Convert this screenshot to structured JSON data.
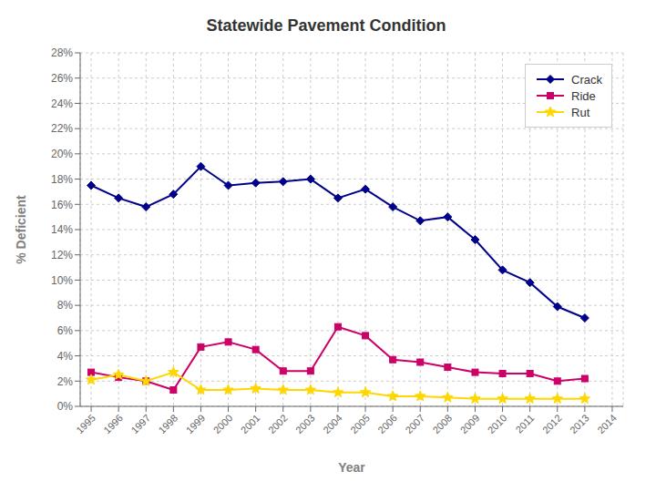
{
  "chart_data": {
    "type": "line",
    "title": "Statewide Pavement Condition",
    "xlabel": "Year",
    "ylabel": "% Deficient",
    "x": [
      1995,
      1996,
      1997,
      1998,
      1999,
      2000,
      2001,
      2002,
      2003,
      2004,
      2005,
      2006,
      2007,
      2008,
      2009,
      2010,
      2011,
      2012,
      2013,
      2014
    ],
    "series": [
      {
        "name": "Crack",
        "color": "#00008B",
        "marker": "diamond",
        "values": [
          17.5,
          16.5,
          15.8,
          16.8,
          19.0,
          17.5,
          17.7,
          17.8,
          18.0,
          16.5,
          17.2,
          15.8,
          14.7,
          15.0,
          13.2,
          10.8,
          9.8,
          7.9,
          7.0,
          null
        ]
      },
      {
        "name": "Ride",
        "color": "#CC0066",
        "marker": "square",
        "values": [
          2.7,
          2.3,
          2.0,
          1.3,
          4.7,
          5.1,
          4.5,
          2.8,
          2.8,
          6.3,
          5.6,
          3.7,
          3.5,
          3.1,
          2.7,
          2.6,
          2.6,
          2.0,
          2.2,
          null
        ]
      },
      {
        "name": "Rut",
        "color": "#FFD700",
        "marker": "star",
        "values": [
          2.1,
          2.5,
          2.0,
          2.7,
          1.3,
          1.3,
          1.4,
          1.3,
          1.3,
          1.1,
          1.1,
          0.8,
          0.8,
          0.7,
          0.6,
          0.6,
          0.6,
          0.6,
          0.6,
          null
        ]
      }
    ],
    "xlim": [
      1994.6,
      2014.4
    ],
    "xticks": [
      1995,
      1996,
      1997,
      1998,
      1999,
      2000,
      2001,
      2002,
      2003,
      2004,
      2005,
      2006,
      2007,
      2008,
      2009,
      2010,
      2011,
      2012,
      2013,
      2014
    ],
    "ylim": [
      0,
      28
    ],
    "yticks": [
      {
        "value": 0,
        "label": "0%"
      },
      {
        "value": 2,
        "label": "2%"
      },
      {
        "value": 4,
        "label": "4%"
      },
      {
        "value": 6,
        "label": "6%"
      },
      {
        "value": 8,
        "label": "8%"
      },
      {
        "value": 10,
        "label": "10%"
      },
      {
        "value": 12,
        "label": "12%"
      },
      {
        "value": 14,
        "label": "14%"
      },
      {
        "value": 16,
        "label": "16%"
      },
      {
        "value": 18,
        "label": "18%"
      },
      {
        "value": 20,
        "label": "20%"
      },
      {
        "value": 22,
        "label": "22%"
      },
      {
        "value": 24,
        "label": "24%"
      },
      {
        "value": 26,
        "label": "26%"
      },
      {
        "value": 28,
        "label": "28%"
      }
    ],
    "grid": true,
    "legend": "upper right"
  }
}
